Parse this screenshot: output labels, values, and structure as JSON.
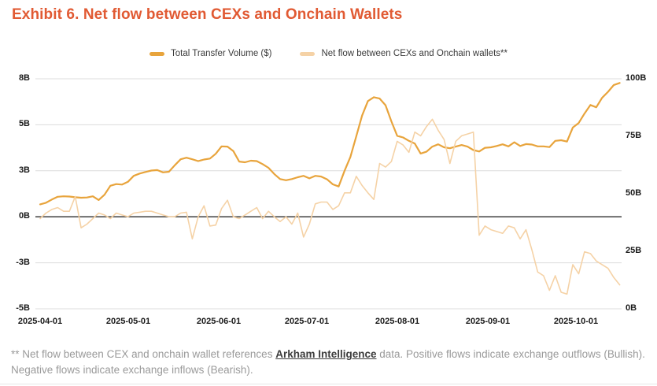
{
  "title": "Exhibit 6. Net flow between CEXs and Onchain Wallets",
  "colors": {
    "title_accent": "#E15A33",
    "total_transfer_volume_line": "#E8A43C",
    "net_flow_line": "#F5D2A6",
    "gridline": "#dcdcdc",
    "zero_line": "#4d4d4d"
  },
  "footnote": {
    "pre": "** Net flow between CEX and onchain wallet references ",
    "link": "Arkham Intelligence",
    "post": " data. Positive flows indicate exchange outflows (Bullish). Negative flows indicate exchange inflows (Bearish)."
  },
  "chart_data": {
    "type": "line",
    "title": "Exhibit 6. Net flow between CEXs and Onchain Wallets",
    "legend_position": "top",
    "grid": true,
    "x_start": "2025-04-01",
    "x_step_days": 2,
    "x_ticks": [
      {
        "label": "2025-04-01",
        "day": 0
      },
      {
        "label": "2025-05-01",
        "day": 30
      },
      {
        "label": "2025-06-01",
        "day": 61
      },
      {
        "label": "2025-07-01",
        "day": 91
      },
      {
        "label": "2025-08-01",
        "day": 122
      },
      {
        "label": "2025-09-01",
        "day": 153
      },
      {
        "label": "2025-10-01",
        "day": 183
      }
    ],
    "y_left": {
      "ticks": [
        "8B",
        "5B",
        "3B",
        "0B",
        "-3B",
        "-5B"
      ],
      "tick_values": [
        7.5,
        5,
        2.5,
        0,
        -2.5,
        -5
      ],
      "range": [
        -5,
        7.5
      ],
      "unit": "B USD"
    },
    "y_right": {
      "ticks": [
        "100B",
        "75B",
        "50B",
        "25B",
        "0B"
      ],
      "tick_values": [
        100,
        75,
        50,
        25,
        0
      ],
      "range": [
        0,
        100
      ],
      "unit": "B USD"
    },
    "series": [
      {
        "name": "Total Transfer Volume ($)",
        "axis": "right",
        "color": "#E8A43C",
        "values": [
          45.4,
          46.1,
          47.5,
          48.7,
          48.9,
          48.8,
          48.5,
          48.3,
          48.4,
          48.9,
          47.3,
          49.6,
          53.5,
          54.2,
          54.0,
          55.2,
          57.8,
          58.8,
          59.5,
          60.1,
          60.3,
          59.3,
          59.6,
          62.4,
          65.0,
          65.7,
          65.0,
          64.2,
          64.9,
          65.3,
          67.4,
          70.6,
          70.5,
          68.6,
          64.0,
          63.7,
          64.4,
          64.2,
          62.9,
          61.3,
          58.6,
          56.4,
          55.9,
          56.4,
          57.2,
          57.8,
          56.7,
          57.8,
          57.5,
          56.3,
          54.1,
          53.2,
          60.0,
          66.0,
          75.0,
          84.0,
          90.3,
          92.0,
          91.4,
          88.5,
          81.5,
          75.2,
          74.5,
          73.0,
          71.8,
          67.5,
          68.3,
          70.5,
          71.5,
          70.2,
          69.8,
          70.5,
          71.2,
          70.5,
          69.0,
          68.4,
          70.0,
          70.2,
          70.8,
          71.5,
          70.6,
          72.4,
          70.8,
          71.6,
          71.4,
          70.6,
          70.6,
          70.3,
          73.0,
          73.3,
          72.7,
          78.8,
          80.8,
          84.9,
          88.6,
          87.6,
          91.7,
          94.3,
          97.3,
          98.2
        ]
      },
      {
        "name": "Net flow between CEXs and Onchain wallets**",
        "axis": "left",
        "color": "#F5D2A6",
        "values": [
          -0.1,
          0.2,
          0.4,
          0.5,
          0.3,
          0.3,
          1.1,
          -0.6,
          -0.4,
          -0.1,
          0.2,
          0.1,
          -0.1,
          0.2,
          0.1,
          0.0,
          0.2,
          0.25,
          0.3,
          0.3,
          0.2,
          0.1,
          0.0,
          0.0,
          0.2,
          0.25,
          -1.2,
          0.0,
          0.6,
          -0.5,
          -0.45,
          0.45,
          0.9,
          0.0,
          -0.1,
          0.1,
          0.3,
          0.5,
          -0.1,
          0.3,
          0.0,
          -0.26,
          0.0,
          -0.4,
          0.2,
          -1.1,
          -0.4,
          0.7,
          0.8,
          0.8,
          0.4,
          0.6,
          1.3,
          1.3,
          2.2,
          1.7,
          1.3,
          0.94,
          2.9,
          2.7,
          3.0,
          4.1,
          3.9,
          3.5,
          4.6,
          4.4,
          4.9,
          5.3,
          4.7,
          4.2,
          2.9,
          4.1,
          4.4,
          4.5,
          4.6,
          -1.0,
          -0.5,
          -0.7,
          -0.8,
          -0.9,
          -0.5,
          -0.6,
          -1.2,
          -0.7,
          -1.8,
          -3.0,
          -3.2,
          -4.0,
          -3.2,
          -4.1,
          -4.2,
          -2.6,
          -3.1,
          -1.9,
          -2.0,
          -2.4,
          -2.6,
          -2.8,
          -3.3,
          -3.7
        ]
      }
    ]
  }
}
